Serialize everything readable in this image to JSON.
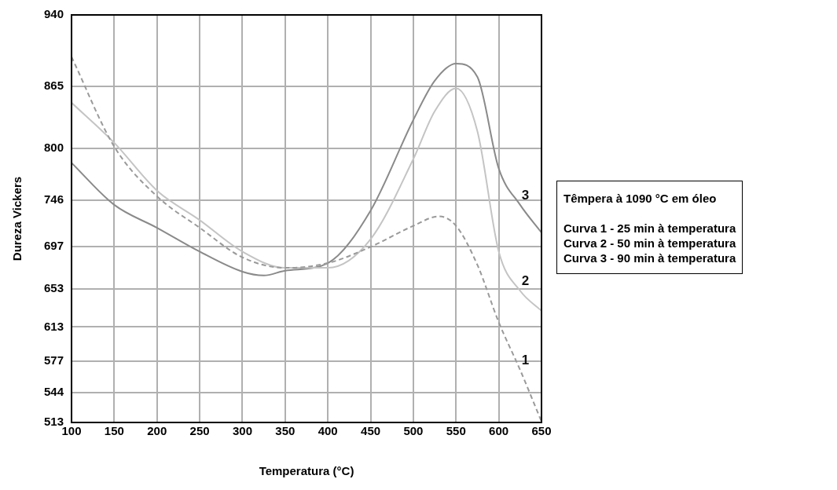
{
  "chart_data": {
    "type": "line",
    "xlabel": "Temperatura (°C)",
    "ylabel": "Dureza Vickers",
    "x": [
      100,
      150,
      200,
      250,
      300,
      325,
      350,
      400,
      450,
      500,
      525,
      550,
      575,
      600,
      625,
      650
    ],
    "series": [
      {
        "name": "1",
        "color": "#9a9a9a",
        "line_style": "dashed",
        "x": [
          100,
          150,
          200,
          250,
          300,
          350,
          400,
          450,
          500,
          530,
          550,
          575,
          600,
          625,
          650
        ],
        "values": [
          896,
          802,
          750,
          717,
          686,
          675,
          680,
          697,
          719,
          729,
          719,
          678,
          618,
          568,
          514
        ]
      },
      {
        "name": "2",
        "color": "#c4c4c4",
        "line_style": "solid",
        "x": [
          100,
          150,
          200,
          250,
          300,
          350,
          400,
          450,
          500,
          525,
          550,
          575,
          600,
          625,
          650
        ],
        "values": [
          848,
          806,
          756,
          725,
          692,
          675,
          675,
          705,
          789,
          839,
          863,
          818,
          692,
          651,
          630
        ]
      },
      {
        "name": "3",
        "color": "#8a8a8a",
        "line_style": "solid",
        "values": [
          785,
          741,
          717,
          692,
          671,
          667,
          672,
          680,
          735,
          830,
          871,
          889,
          875,
          779,
          741,
          712
        ]
      }
    ],
    "xlim": [
      100,
      650
    ],
    "xticks": [
      100,
      150,
      200,
      250,
      300,
      350,
      400,
      450,
      500,
      550,
      600,
      650
    ],
    "ylim": [
      513,
      940
    ],
    "yticks": [
      513,
      544,
      577,
      613,
      653,
      697,
      746,
      800,
      865,
      940
    ],
    "grid": true,
    "legend": false,
    "marker": "none",
    "annotations": [
      "Têmpera à 1090 °C em óleo",
      "Curva 1 - 25 min à temperatura",
      "Curva 2 - 50 min à temperatura",
      "Curva 3 - 90 min à temperatura"
    ]
  }
}
